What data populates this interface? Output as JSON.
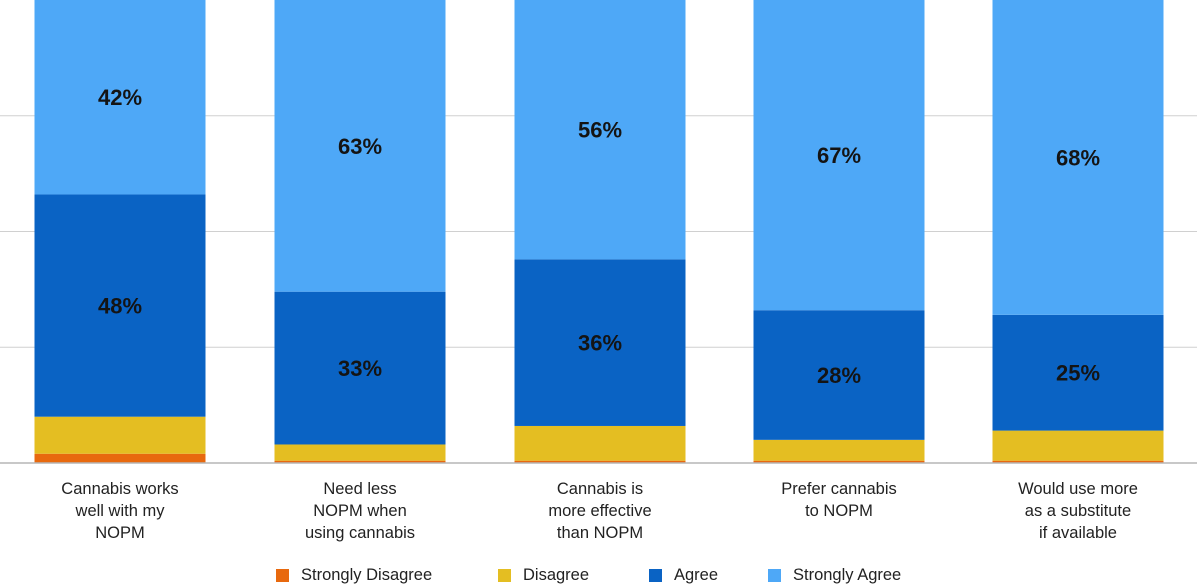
{
  "chart_data": {
    "type": "bar",
    "stacked": true,
    "normalized": true,
    "ylim": [
      0,
      100
    ],
    "grid": true,
    "legend_position": "bottom",
    "categories": [
      "Cannabis works\nwell with my\nNOPM",
      "Need less\nNOPM when\nusing cannabis",
      "Cannabis is\nmore effective\nthan NOPM",
      "Prefer cannabis\nto NOPM",
      "Would use more\nas a substitute\nif available"
    ],
    "series": [
      {
        "name": "Strongly Disagree",
        "color": "#e8690e",
        "values": [
          2,
          0.5,
          0.5,
          0.5,
          0.5
        ]
      },
      {
        "name": "Disagree",
        "color": "#e4be22",
        "values": [
          8,
          3.5,
          7.5,
          4.5,
          6.5
        ]
      },
      {
        "name": "Agree",
        "color": "#0a63c4",
        "values": [
          48,
          33,
          36,
          28,
          25
        ]
      },
      {
        "name": "Strongly Agree",
        "color": "#4ea8f7",
        "values": [
          42,
          63,
          56,
          67,
          68
        ]
      }
    ],
    "data_labels": {
      "Agree": [
        "48%",
        "33%",
        "36%",
        "28%",
        "25%"
      ],
      "Strongly Agree": [
        "42%",
        "63%",
        "56%",
        "67%",
        "68%"
      ]
    }
  }
}
